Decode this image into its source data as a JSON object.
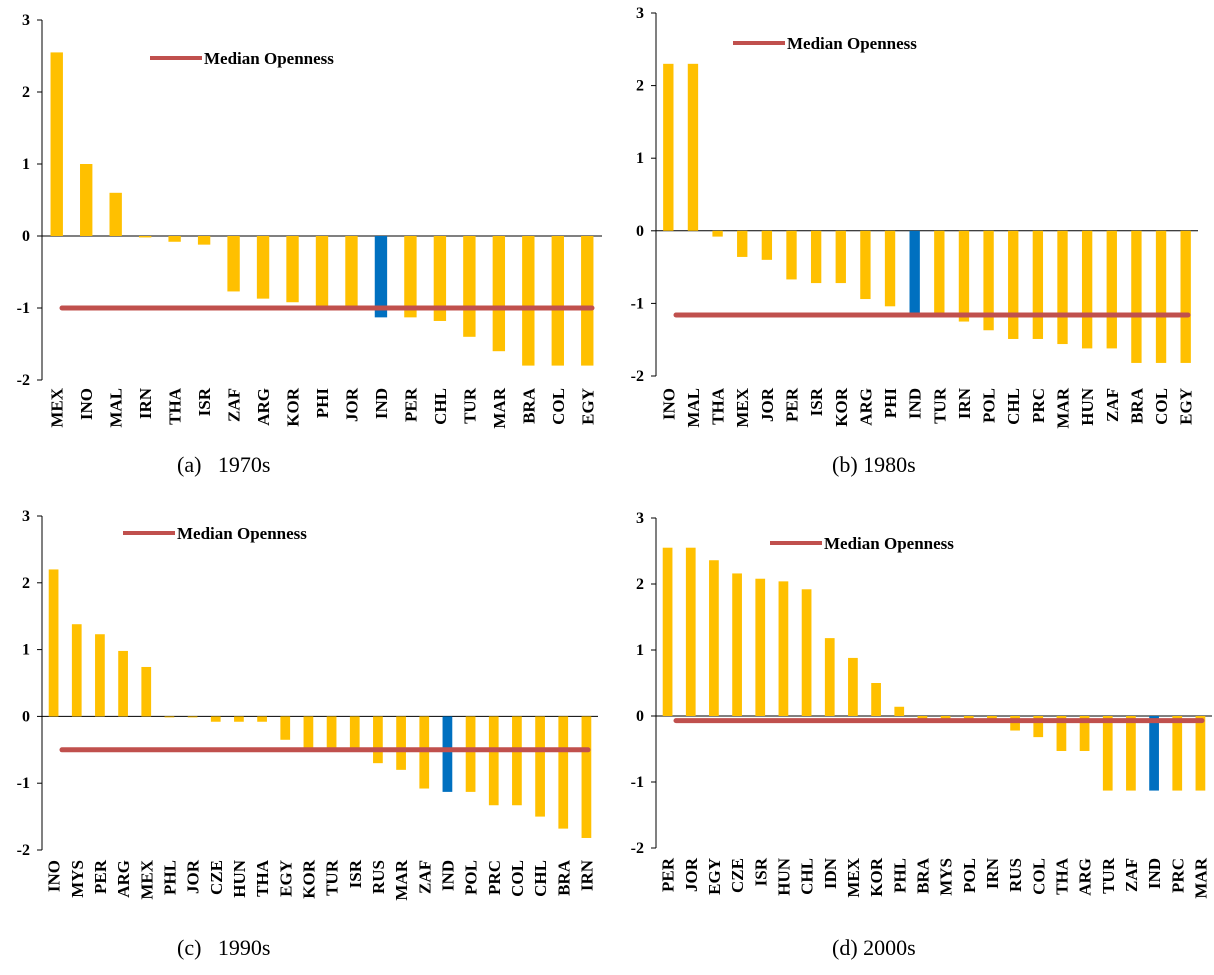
{
  "colors": {
    "bar": "#FFC000",
    "highlight": "#0070C0",
    "median": "#C0504D",
    "axis": "#000000"
  },
  "chart_data": [
    {
      "type": "bar",
      "caption": "(a)   1970s",
      "legend": "Median Openness",
      "ylim": [
        -2,
        3
      ],
      "yticks": [
        "-2",
        "-1",
        "0",
        "1",
        "2",
        "3"
      ],
      "highlight": "IND",
      "median": -1.0,
      "categories": [
        "MEX",
        "INO",
        "MAL",
        "IRN",
        "THA",
        "ISR",
        "ZAF",
        "ARG",
        "KOR",
        "PHI",
        "JOR",
        "IND",
        "PER",
        "CHL",
        "TUR",
        "MAR",
        "BRA",
        "COL",
        "EGY"
      ],
      "values": [
        2.55,
        1.0,
        0.6,
        -0.02,
        -0.08,
        -0.12,
        -0.77,
        -0.87,
        -0.92,
        -0.98,
        -1.0,
        -1.13,
        -1.13,
        -1.18,
        -1.4,
        -1.6,
        -1.8,
        -1.8,
        -1.8
      ]
    },
    {
      "type": "bar",
      "caption": "(b) 1980s",
      "legend": "Median Openness",
      "ylim": [
        -2,
        3
      ],
      "yticks": [
        "-2",
        "-1",
        "0",
        "1",
        "2",
        "3"
      ],
      "highlight": "IND",
      "median": -1.16,
      "categories": [
        "INO",
        "MAL",
        "THA",
        "MEX",
        "JOR",
        "PER",
        "ISR",
        "KOR",
        "ARG",
        "PHI",
        "IND",
        "TUR",
        "IRN",
        "POL",
        "CHL",
        "PRC",
        "MAR",
        "HUN",
        "ZAF",
        "BRA",
        "COL",
        "EGY"
      ],
      "values": [
        2.3,
        2.3,
        -0.08,
        -0.36,
        -0.4,
        -0.67,
        -0.72,
        -0.72,
        -0.94,
        -1.04,
        -1.13,
        -1.13,
        -1.25,
        -1.37,
        -1.49,
        -1.49,
        -1.56,
        -1.62,
        -1.62,
        -1.82,
        -1.82,
        -1.82
      ]
    },
    {
      "type": "bar",
      "caption": "(c)   1990s",
      "legend": "Median Openness",
      "ylim": [
        -2,
        3
      ],
      "yticks": [
        "-2",
        "-1",
        "0",
        "1",
        "2",
        "3"
      ],
      "highlight": "IND",
      "median": -0.5,
      "categories": [
        "INO",
        "MYS",
        "PER",
        "ARG",
        "MEX",
        "PHL",
        "JOR",
        "CZE",
        "HUN",
        "THA",
        "EGY",
        "KOR",
        "TUR",
        "ISR",
        "RUS",
        "MAR",
        "ZAF",
        "IND",
        "POL",
        "PRC",
        "COL",
        "CHL",
        "BRA",
        "IRN"
      ],
      "values": [
        2.2,
        1.38,
        1.23,
        0.98,
        0.74,
        0.0,
        0.0,
        -0.08,
        -0.08,
        -0.08,
        -0.35,
        -0.5,
        -0.5,
        -0.5,
        -0.7,
        -0.8,
        -1.08,
        -1.13,
        -1.13,
        -1.33,
        -1.33,
        -1.5,
        -1.68,
        -1.82
      ]
    },
    {
      "type": "bar",
      "caption": "(d) 2000s",
      "legend": "Median Openness",
      "ylim": [
        -2,
        3
      ],
      "yticks": [
        "-2",
        "-1",
        "0",
        "1",
        "2",
        "3"
      ],
      "highlight": "IND",
      "median": -0.07,
      "categories": [
        "PER",
        "JOR",
        "EGY",
        "CZE",
        "ISR",
        "HUN",
        "CHL",
        "IDN",
        "MEX",
        "KOR",
        "PHL",
        "BRA",
        "MYS",
        "POL",
        "IRN",
        "RUS",
        "COL",
        "THA",
        "ARG",
        "TUR",
        "ZAF",
        "IND",
        "PRC",
        "MAR"
      ],
      "values": [
        2.55,
        2.55,
        2.36,
        2.16,
        2.08,
        2.04,
        1.92,
        1.18,
        0.88,
        0.5,
        0.14,
        -0.06,
        -0.06,
        -0.06,
        -0.06,
        -0.22,
        -0.32,
        -0.53,
        -0.53,
        -1.13,
        -1.13,
        -1.13,
        -1.13,
        -1.13
      ]
    }
  ]
}
